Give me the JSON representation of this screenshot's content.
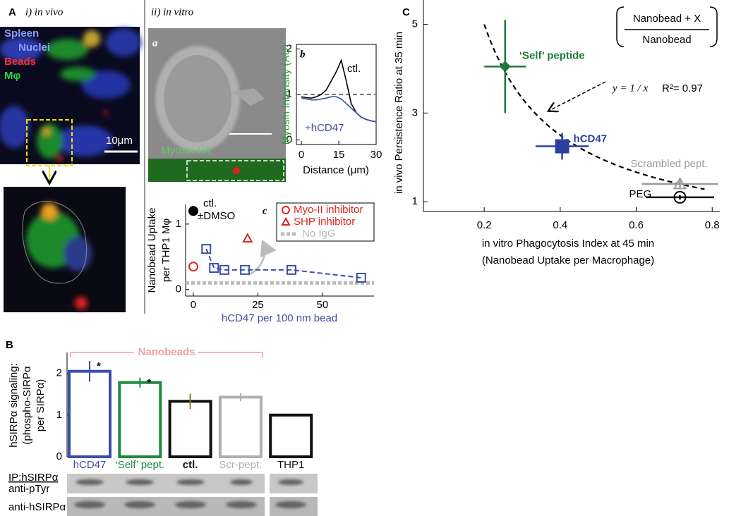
{
  "panel_letters": [
    "A",
    "B",
    "C"
  ],
  "panel_A": {
    "i_title": "i) in vivo",
    "ii_title": "ii) in vitro",
    "sub_a": "a",
    "image_labels": [
      "Spleen",
      "Nuclei",
      "Beads",
      "Mφ"
    ],
    "scale_bar": "10μm",
    "strip_label": "Myosin-IIA"
  },
  "blot": {
    "ip": "IP:hSIRPα",
    "rows": [
      "anti-pTyr",
      "anti-hSIRPα"
    ]
  },
  "chart_data": [
    {
      "type": "line",
      "label": "b",
      "x": [
        0,
        2,
        4,
        6,
        8,
        10,
        12,
        14,
        16,
        18,
        20,
        22,
        24,
        26,
        28,
        30
      ],
      "series": [
        {
          "name": "ctl.",
          "color": "#000000",
          "values": [
            0.95,
            0.93,
            0.92,
            0.95,
            1.0,
            1.1,
            1.3,
            1.5,
            1.75,
            1.3,
            0.8,
            0.6,
            0.5,
            0.45,
            0.42,
            0.4
          ]
        },
        {
          "name": "+hCD47",
          "color": "#3a4fa8",
          "values": [
            0.92,
            0.9,
            0.88,
            0.88,
            0.9,
            0.92,
            0.95,
            0.95,
            0.9,
            0.8,
            0.7,
            0.6,
            0.5,
            0.45,
            0.42,
            0.4
          ]
        }
      ],
      "xlim": [
        -2,
        30
      ],
      "ylim": [
        -0.1,
        2.1
      ],
      "xticks": [
        0,
        15,
        30
      ],
      "yticks": [
        0,
        1,
        2
      ],
      "xlabel": "Distance (μm)",
      "ylabel": "Myosin Intensity (AU)",
      "reference_line": 1
    },
    {
      "type": "scatter",
      "label": "c",
      "series": [
        {
          "color": "#3a4fa8",
          "marker": "square",
          "x": [
            5,
            8,
            12,
            20,
            38,
            65
          ],
          "values": [
            0.62,
            0.33,
            0.3,
            0.3,
            0.3,
            0.18
          ]
        },
        {
          "color": "#000000",
          "marker": "dot",
          "x": [
            0
          ],
          "values": [
            1.2
          ]
        },
        {
          "name": "Myo-II inhibitor",
          "color": "#e0231c",
          "marker": "circle",
          "x": [
            0
          ],
          "values": [
            0.35
          ]
        },
        {
          "name": "SHP  inhibitor",
          "color": "#e0231c",
          "marker": "triangle",
          "x": [
            21
          ],
          "values": [
            0.78
          ]
        }
      ],
      "baseline": {
        "name": "No IgG",
        "color": "#bbbbbb",
        "value": 0.1
      },
      "annotations": [
        "ctl.",
        "±DMSO"
      ],
      "xlim": [
        -3,
        70
      ],
      "ylim": [
        -0.1,
        1.3
      ],
      "xticks": [
        0,
        25,
        50
      ],
      "yticks": [
        0,
        1
      ],
      "xlabel": "hCD47 per 100 nm bead",
      "ylabel": [
        "Nanobead Uptake",
        "per THP1 Mφ"
      ]
    },
    {
      "type": "bar",
      "categories": [
        "hCD47",
        "‘Self’ pept.",
        "ctl.",
        "Scr-pept.",
        "THP1"
      ],
      "values": [
        2.05,
        1.78,
        1.33,
        1.43,
        1.0
      ],
      "errors": [
        0.25,
        0.12,
        0.18,
        0.1,
        null
      ],
      "colors": [
        "#3a4fa8",
        "#1f8a3f",
        "#111111",
        "#b0b0b0",
        "#111111"
      ],
      "significance": [
        "*",
        "*",
        null,
        null,
        null
      ],
      "bracket": "Nanobeads",
      "ylim": [
        0,
        2.4
      ],
      "yticks": [
        0,
        1,
        2
      ],
      "ylabel": [
        "hSIRPα signaling:",
        "(phospho-SIRPα",
        "per SIRPα)"
      ]
    },
    {
      "type": "scatter",
      "series": [
        {
          "name": "‘Self’ peptide",
          "color": "#1f7a3a",
          "marker": "diamond",
          "x": [
            0.255
          ],
          "values": [
            4.05
          ],
          "xerr": [
            0.055
          ],
          "yerr": [
            1.05
          ]
        },
        {
          "name": "hCD47",
          "color": "#2c3f9e",
          "marker": "square",
          "x": [
            0.405
          ],
          "values": [
            2.25
          ],
          "xerr": [
            0.07
          ],
          "yerr": [
            0.3
          ]
        },
        {
          "name": "Scrambled pept.",
          "color": "#999999",
          "marker": "triangle",
          "x": [
            0.715
          ],
          "values": [
            1.4
          ],
          "xerr": [
            0.1
          ],
          "yerr": [
            0.08
          ]
        },
        {
          "name": "PEG",
          "color": "#000000",
          "marker": "circle",
          "x": [
            0.715
          ],
          "values": [
            1.1
          ],
          "xerr": [
            0.09
          ],
          "yerr": [
            0.05
          ]
        }
      ],
      "fit": {
        "equation": "y = 1 / x",
        "r2": "R²= 0.97",
        "xlim": [
          0.2,
          0.78
        ]
      },
      "inset": {
        "numerator": "Nanobead + X",
        "denominator": "Nanobead"
      },
      "xlim": [
        0.04,
        0.82
      ],
      "ylim": [
        0.78,
        5.55
      ],
      "xticks": [
        0.2,
        0.4,
        0.6,
        0.8
      ],
      "yticks": [
        1,
        3,
        5
      ],
      "xlabel": [
        "in vitro Phagocytosis Index at 45 min",
        "(Nanobead Uptake per Macrophage)"
      ],
      "ylabel": "in vivo Persistence Ratio at 35 min"
    }
  ]
}
